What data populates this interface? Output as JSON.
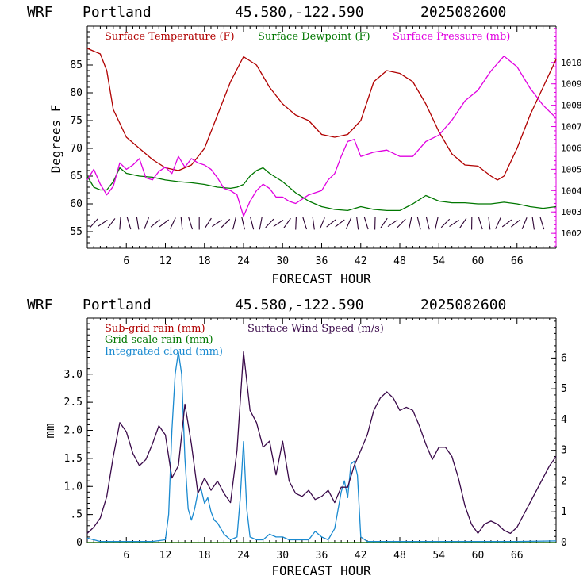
{
  "chart_data": [
    {
      "type": "line",
      "header": {
        "model": "WRF",
        "location": "Portland",
        "coords": "45.580,-122.590",
        "run": "2025082600"
      },
      "xlabel": "FORECAST HOUR",
      "ylabel": "Degrees F",
      "xlim": [
        0,
        72
      ],
      "ylim": [
        52,
        92
      ],
      "y2lim": [
        1001.3,
        1011.7
      ],
      "xticks": [
        6,
        12,
        18,
        24,
        30,
        36,
        42,
        48,
        54,
        60,
        66
      ],
      "yticks": [
        55,
        60,
        65,
        70,
        75,
        80,
        85
      ],
      "y2ticks": [
        1002,
        1003,
        1004,
        1005,
        1006,
        1007,
        1008,
        1009,
        1010
      ],
      "wind_barbs_y": 56.5,
      "series": [
        {
          "name": "Surface Temperature (F)",
          "color": "#b00000",
          "axis": "left",
          "x": [
            0,
            2,
            3,
            4,
            6,
            8,
            10,
            12,
            14,
            16,
            18,
            20,
            22,
            24,
            26,
            28,
            30,
            32,
            34,
            36,
            38,
            40,
            42,
            44,
            46,
            48,
            50,
            52,
            54,
            56,
            58,
            60,
            62,
            63,
            64,
            66,
            68,
            70,
            72
          ],
          "y": [
            88,
            87,
            84,
            77,
            72,
            70,
            68,
            66.5,
            66,
            67,
            70,
            76,
            82,
            86.5,
            85,
            81,
            78,
            76,
            75,
            72.5,
            72,
            72.5,
            75,
            82,
            84,
            83.5,
            82,
            78,
            73,
            69,
            67,
            66.8,
            65,
            64.3,
            65,
            70,
            76,
            81,
            86
          ]
        },
        {
          "name": "Surface Dewpoint (F)",
          "color": "#007700",
          "axis": "left",
          "x": [
            0,
            1,
            2,
            3,
            4,
            5,
            6,
            8,
            10,
            12,
            14,
            16,
            18,
            20,
            22,
            23,
            24,
            25,
            26,
            27,
            28,
            30,
            32,
            34,
            36,
            38,
            40,
            42,
            44,
            46,
            48,
            50,
            52,
            54,
            56,
            58,
            60,
            62,
            64,
            66,
            68,
            70,
            72
          ],
          "y": [
            65,
            63,
            62.5,
            62.5,
            64,
            66.5,
            65.5,
            65,
            64.8,
            64.3,
            64,
            63.8,
            63.5,
            63,
            62.8,
            63,
            63.5,
            65,
            66,
            66.5,
            65.5,
            64,
            62,
            60.5,
            59.5,
            59,
            58.8,
            59.5,
            59,
            58.8,
            58.8,
            60,
            61.5,
            60.5,
            60.2,
            60.2,
            60,
            60,
            60.3,
            60,
            59.5,
            59.2,
            59.5
          ]
        },
        {
          "name": "Surface Pressure (mb)",
          "color": "#e000e0",
          "axis": "right",
          "x": [
            0,
            1,
            2,
            3,
            4,
            5,
            6,
            7,
            8,
            9,
            10,
            11,
            12,
            13,
            14,
            15,
            16,
            17,
            18,
            19,
            20,
            21,
            22,
            23,
            24,
            25,
            26,
            27,
            28,
            29,
            30,
            31,
            32,
            33,
            34,
            35,
            36,
            37,
            38,
            39,
            40,
            41,
            42,
            44,
            46,
            48,
            50,
            52,
            54,
            56,
            58,
            60,
            62,
            64,
            66,
            68,
            70,
            72
          ],
          "y": [
            1004.5,
            1005,
            1004.3,
            1003.8,
            1004.2,
            1005.3,
            1005,
            1005.2,
            1005.5,
            1004.6,
            1004.5,
            1004.9,
            1005.1,
            1004.8,
            1005.6,
            1005.1,
            1005.5,
            1005.3,
            1005.2,
            1005,
            1004.6,
            1004.1,
            1004,
            1003.8,
            1002.8,
            1003.5,
            1004,
            1004.3,
            1004.1,
            1003.7,
            1003.7,
            1003.5,
            1003.4,
            1003.6,
            1003.8,
            1003.9,
            1004,
            1004.5,
            1004.8,
            1005.6,
            1006.3,
            1006.4,
            1005.6,
            1005.8,
            1005.9,
            1005.6,
            1005.6,
            1006.3,
            1006.6,
            1007.3,
            1008.2,
            1008.7,
            1009.6,
            1010.3,
            1009.8,
            1008.8,
            1008,
            1007.4
          ]
        }
      ]
    },
    {
      "type": "line",
      "header": {
        "model": "WRF",
        "location": "Portland",
        "coords": "45.580,-122.590",
        "run": "2025082600"
      },
      "xlabel": "FORECAST HOUR",
      "ylabel": "mm",
      "xlim": [
        0,
        72
      ],
      "ylim": [
        0,
        4.0
      ],
      "y2lim": [
        0,
        7.3
      ],
      "xticks": [
        6,
        12,
        18,
        24,
        30,
        36,
        42,
        48,
        54,
        60,
        66
      ],
      "yticks": [
        0,
        0.5,
        1.0,
        1.5,
        2.0,
        2.5,
        3.0
      ],
      "ytick_labels": [
        "0",
        ".5",
        "1.0",
        "1.5",
        "2.0",
        "2.5",
        "3.0"
      ],
      "y2ticks": [
        0,
        1,
        2,
        3,
        4,
        5,
        6
      ],
      "series": [
        {
          "name": "Sub-grid rain (mm)",
          "color": "#b00000",
          "axis": "left",
          "x": [
            0,
            72
          ],
          "y": [
            0,
            0
          ]
        },
        {
          "name": "Grid-scale rain (mm)",
          "color": "#007700",
          "axis": "left",
          "x": [
            0,
            72
          ],
          "y": [
            0,
            0
          ]
        },
        {
          "name": "Integrated cloud (mm)",
          "color": "#1a8ad0",
          "axis": "left",
          "x": [
            0,
            1,
            2,
            3,
            4,
            6,
            8,
            10,
            12,
            12.5,
            13,
            13.5,
            14,
            14.5,
            15,
            15.5,
            16,
            16.5,
            17,
            17.5,
            18,
            18.5,
            19,
            19.5,
            20,
            21,
            22,
            23,
            23.5,
            24,
            24.5,
            25,
            26,
            27,
            28,
            29,
            30,
            31,
            32,
            33,
            34,
            35,
            36,
            37,
            38,
            39,
            39.5,
            40,
            40.5,
            41,
            41.5,
            42,
            43,
            48,
            54,
            60,
            66,
            72
          ],
          "y": [
            0.08,
            0.05,
            0.02,
            0.02,
            0.02,
            0.02,
            0.02,
            0.02,
            0.05,
            0.5,
            2.0,
            3.0,
            3.4,
            3.0,
            1.5,
            0.6,
            0.4,
            0.6,
            0.9,
            0.95,
            0.7,
            0.8,
            0.55,
            0.4,
            0.35,
            0.15,
            0.05,
            0.1,
            0.8,
            1.8,
            0.6,
            0.1,
            0.05,
            0.05,
            0.15,
            0.1,
            0.1,
            0.05,
            0.05,
            0.05,
            0.05,
            0.2,
            0.1,
            0.05,
            0.25,
            0.9,
            1.1,
            0.8,
            1.4,
            1.45,
            1.2,
            0.1,
            0.02,
            0.02,
            0.02,
            0.02,
            0.02,
            0.03
          ]
        },
        {
          "name": "Surface Wind Speed (m/s)",
          "color": "#3a0a4a",
          "axis": "right",
          "x": [
            0,
            1,
            2,
            3,
            4,
            5,
            6,
            7,
            8,
            9,
            10,
            11,
            12,
            13,
            14,
            15,
            16,
            17,
            18,
            19,
            20,
            21,
            22,
            23,
            24,
            25,
            26,
            27,
            28,
            29,
            30,
            31,
            32,
            33,
            34,
            35,
            36,
            37,
            38,
            39,
            40,
            41,
            42,
            43,
            44,
            45,
            46,
            47,
            48,
            49,
            50,
            51,
            52,
            53,
            54,
            55,
            56,
            57,
            58,
            59,
            60,
            61,
            62,
            63,
            64,
            65,
            66,
            67,
            68,
            69,
            70,
            71,
            72
          ],
          "y": [
            0.3,
            0.5,
            0.8,
            1.5,
            2.8,
            3.9,
            3.6,
            2.9,
            2.5,
            2.7,
            3.2,
            3.8,
            3.5,
            2.1,
            2.5,
            4.5,
            3.2,
            1.6,
            2.1,
            1.7,
            2.0,
            1.6,
            1.3,
            3.0,
            6.2,
            4.3,
            3.9,
            3.1,
            3.3,
            2.2,
            3.3,
            2.0,
            1.6,
            1.5,
            1.7,
            1.4,
            1.5,
            1.7,
            1.3,
            1.8,
            1.8,
            2.5,
            3.0,
            3.5,
            4.3,
            4.7,
            4.9,
            4.7,
            4.3,
            4.4,
            4.3,
            3.8,
            3.2,
            2.7,
            3.1,
            3.1,
            2.8,
            2.1,
            1.2,
            0.6,
            0.3,
            0.6,
            0.7,
            0.6,
            0.4,
            0.3,
            0.5,
            0.9,
            1.3,
            1.7,
            2.1,
            2.5,
            2.8
          ]
        }
      ]
    }
  ]
}
